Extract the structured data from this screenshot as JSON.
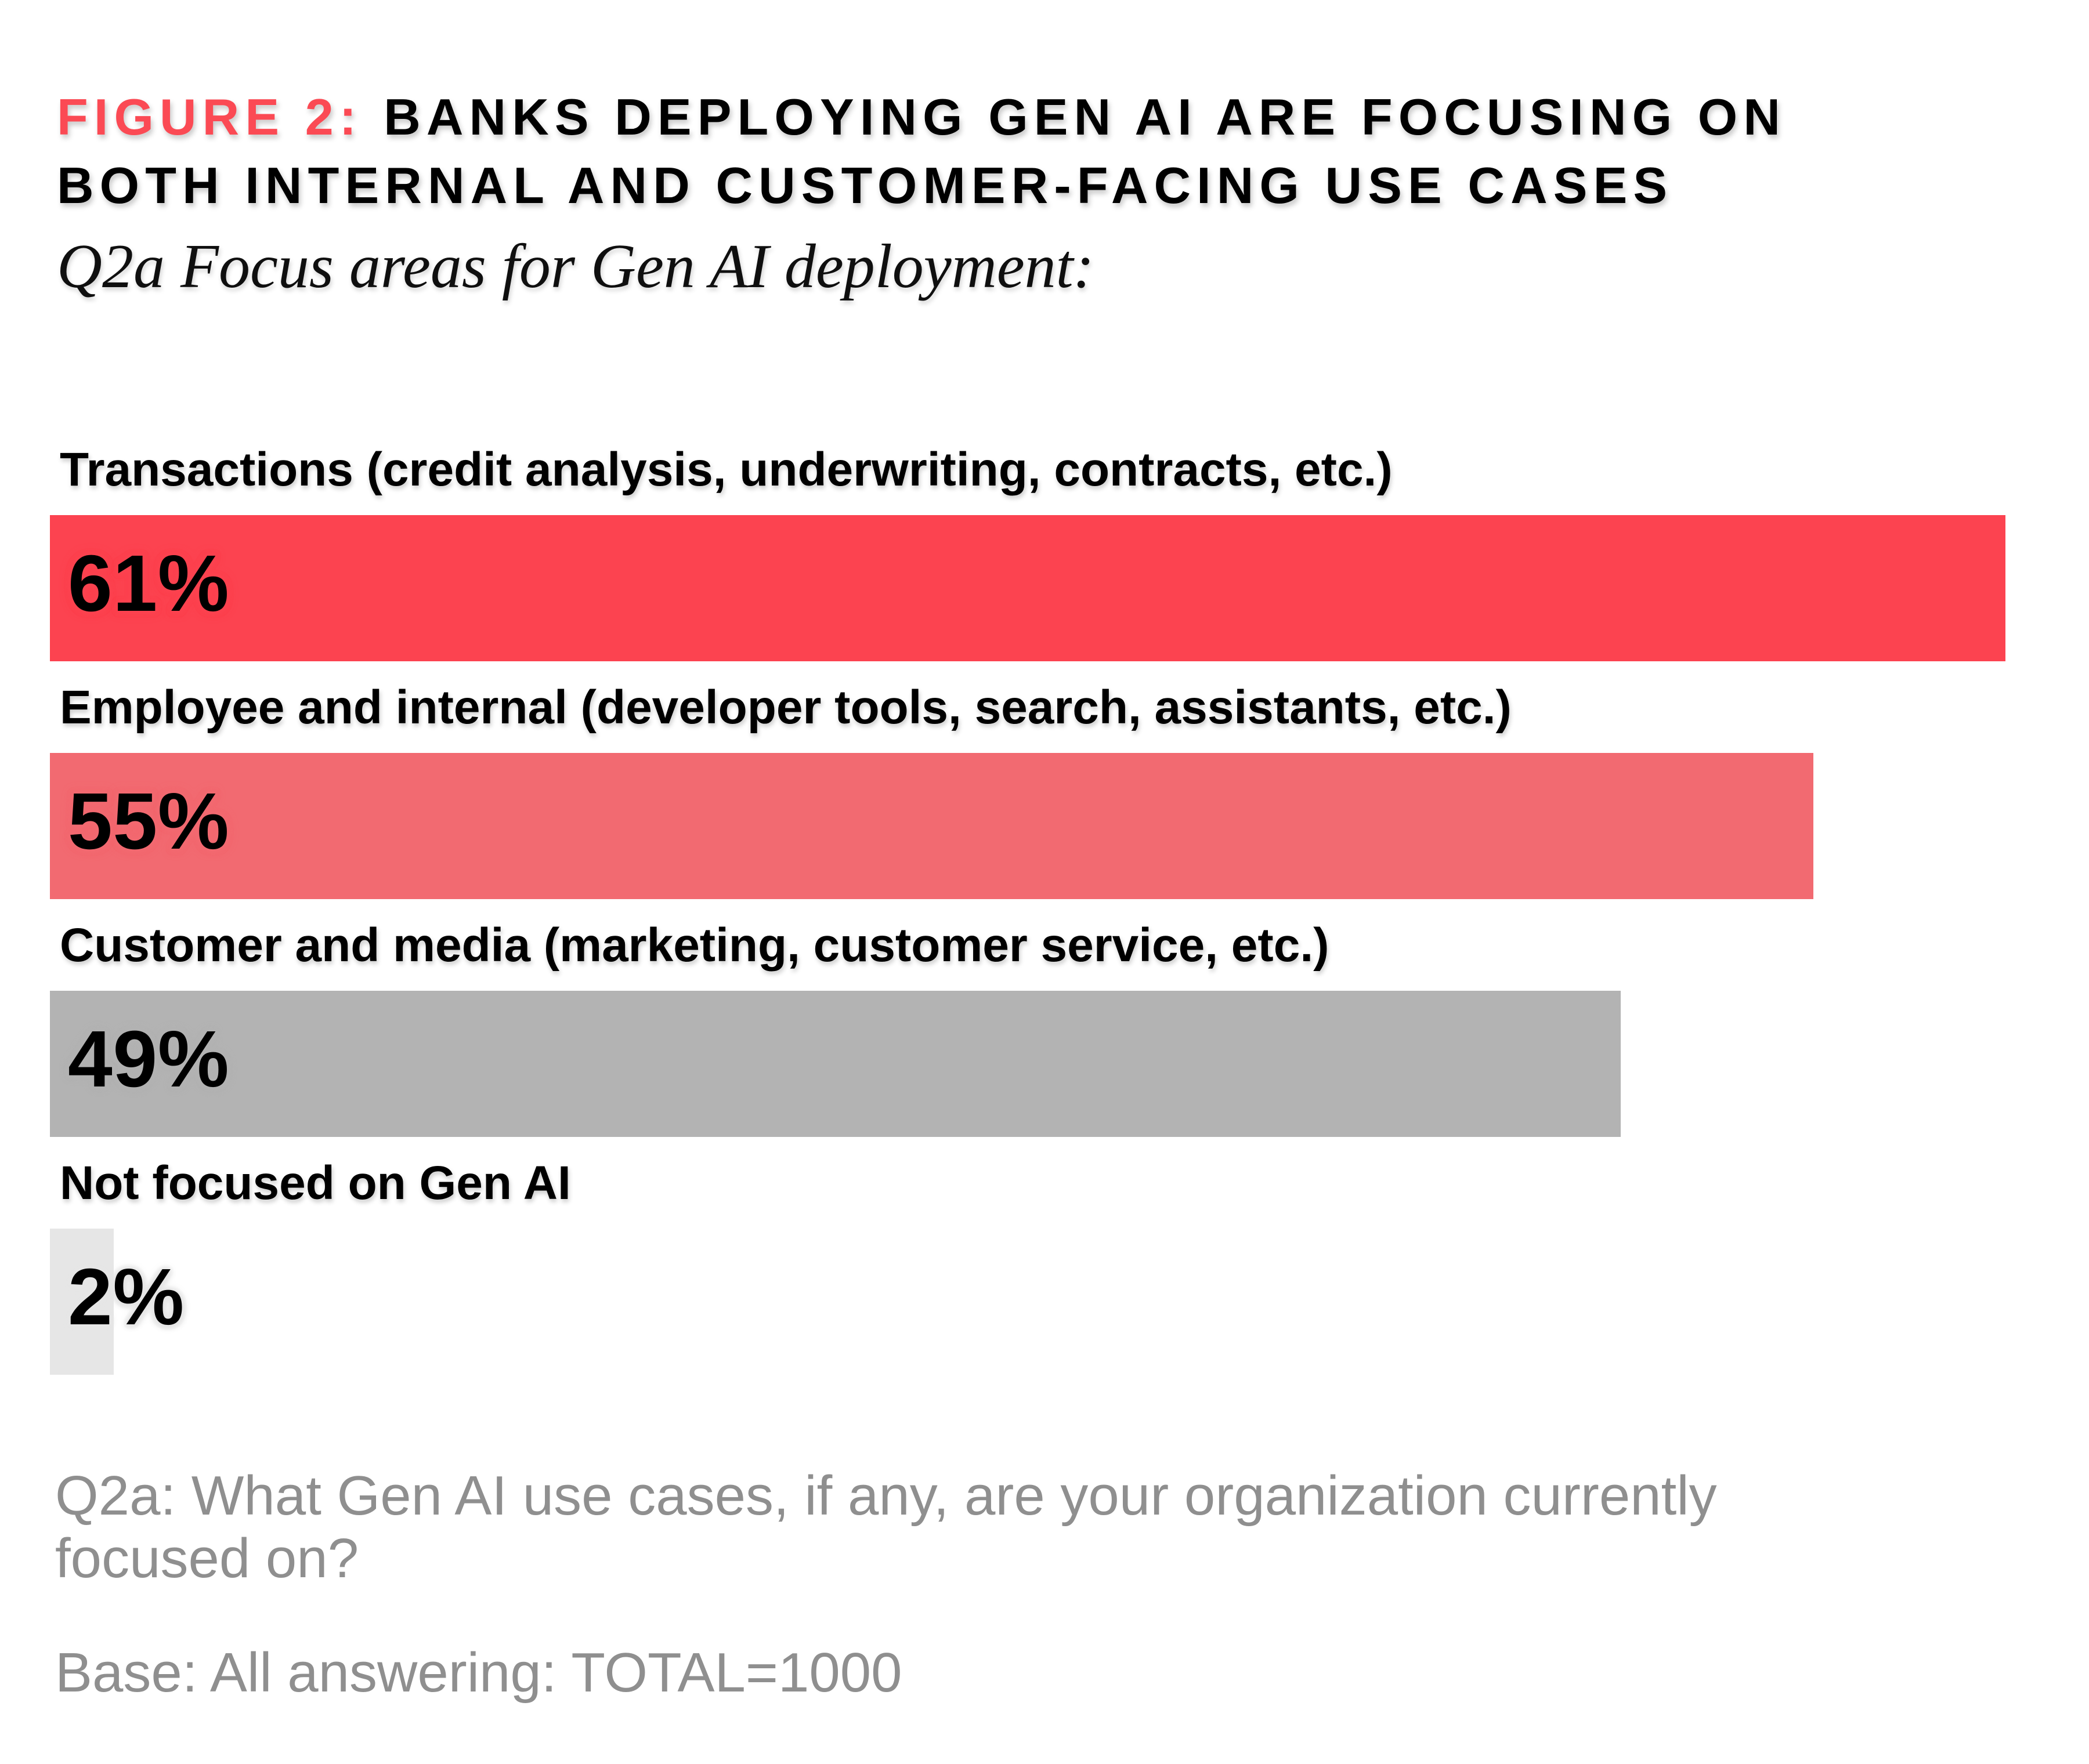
{
  "figure": {
    "title_prefix": "FIGURE 2:",
    "title_line1_rest": "BANKS DEPLOYING GEN AI ARE FOCUSING ON",
    "title_line2": "BOTH INTERNAL AND CUSTOMER-FACING USE CASES",
    "accent_color": "#FB4A54",
    "subtitle": "Q2a Focus areas for Gen AI deployment:"
  },
  "chart_data": {
    "type": "bar",
    "orientation": "horizontal",
    "title": "FIGURE 2: BANKS DEPLOYING GEN AI ARE FOCUSING ON BOTH INTERNAL AND CUSTOMER-FACING USE CASES",
    "subtitle": "Q2a Focus areas for Gen AI deployment:",
    "categories": [
      "Transactions (credit analysis, underwriting, contracts, etc.)",
      "Employee and internal (developer tools, search, assistants, etc.)",
      "Customer and media (marketing, customer service, etc.)",
      "Not focused on Gen AI"
    ],
    "values": [
      61,
      55,
      49,
      2
    ],
    "value_unit": "%",
    "scale_max": 61,
    "xlim": [
      0,
      61
    ],
    "grid": false,
    "legend": false,
    "xlabel": "",
    "ylabel": "",
    "rows": [
      {
        "label": "Transactions (credit analysis, underwriting, contracts, etc.)",
        "value": 61,
        "value_label": "61%",
        "color": "#FC4350"
      },
      {
        "label": "Employee and internal (developer tools, search, assistants, etc.)",
        "value": 55,
        "value_label": "55%",
        "color": "#F26A71"
      },
      {
        "label": "Customer and media (marketing, customer service, etc.)",
        "value": 49,
        "value_label": "49%",
        "color": "#B3B3B3"
      },
      {
        "label": "Not focused on Gen AI",
        "value": 2,
        "value_label": "2%",
        "color": "#E6E6E6"
      }
    ],
    "footnotes": [
      "Q2a: What Gen AI use cases, if any, are your organization currently focused on?",
      "Base: All answering: TOTAL=1000"
    ]
  },
  "footer": {
    "question_line1": "Q2a: What Gen AI use cases, if any, are your organization currently",
    "question_line2": "focused on?",
    "base": "Base: All answering: TOTAL=1000",
    "text_color": "#8F8F8F"
  }
}
